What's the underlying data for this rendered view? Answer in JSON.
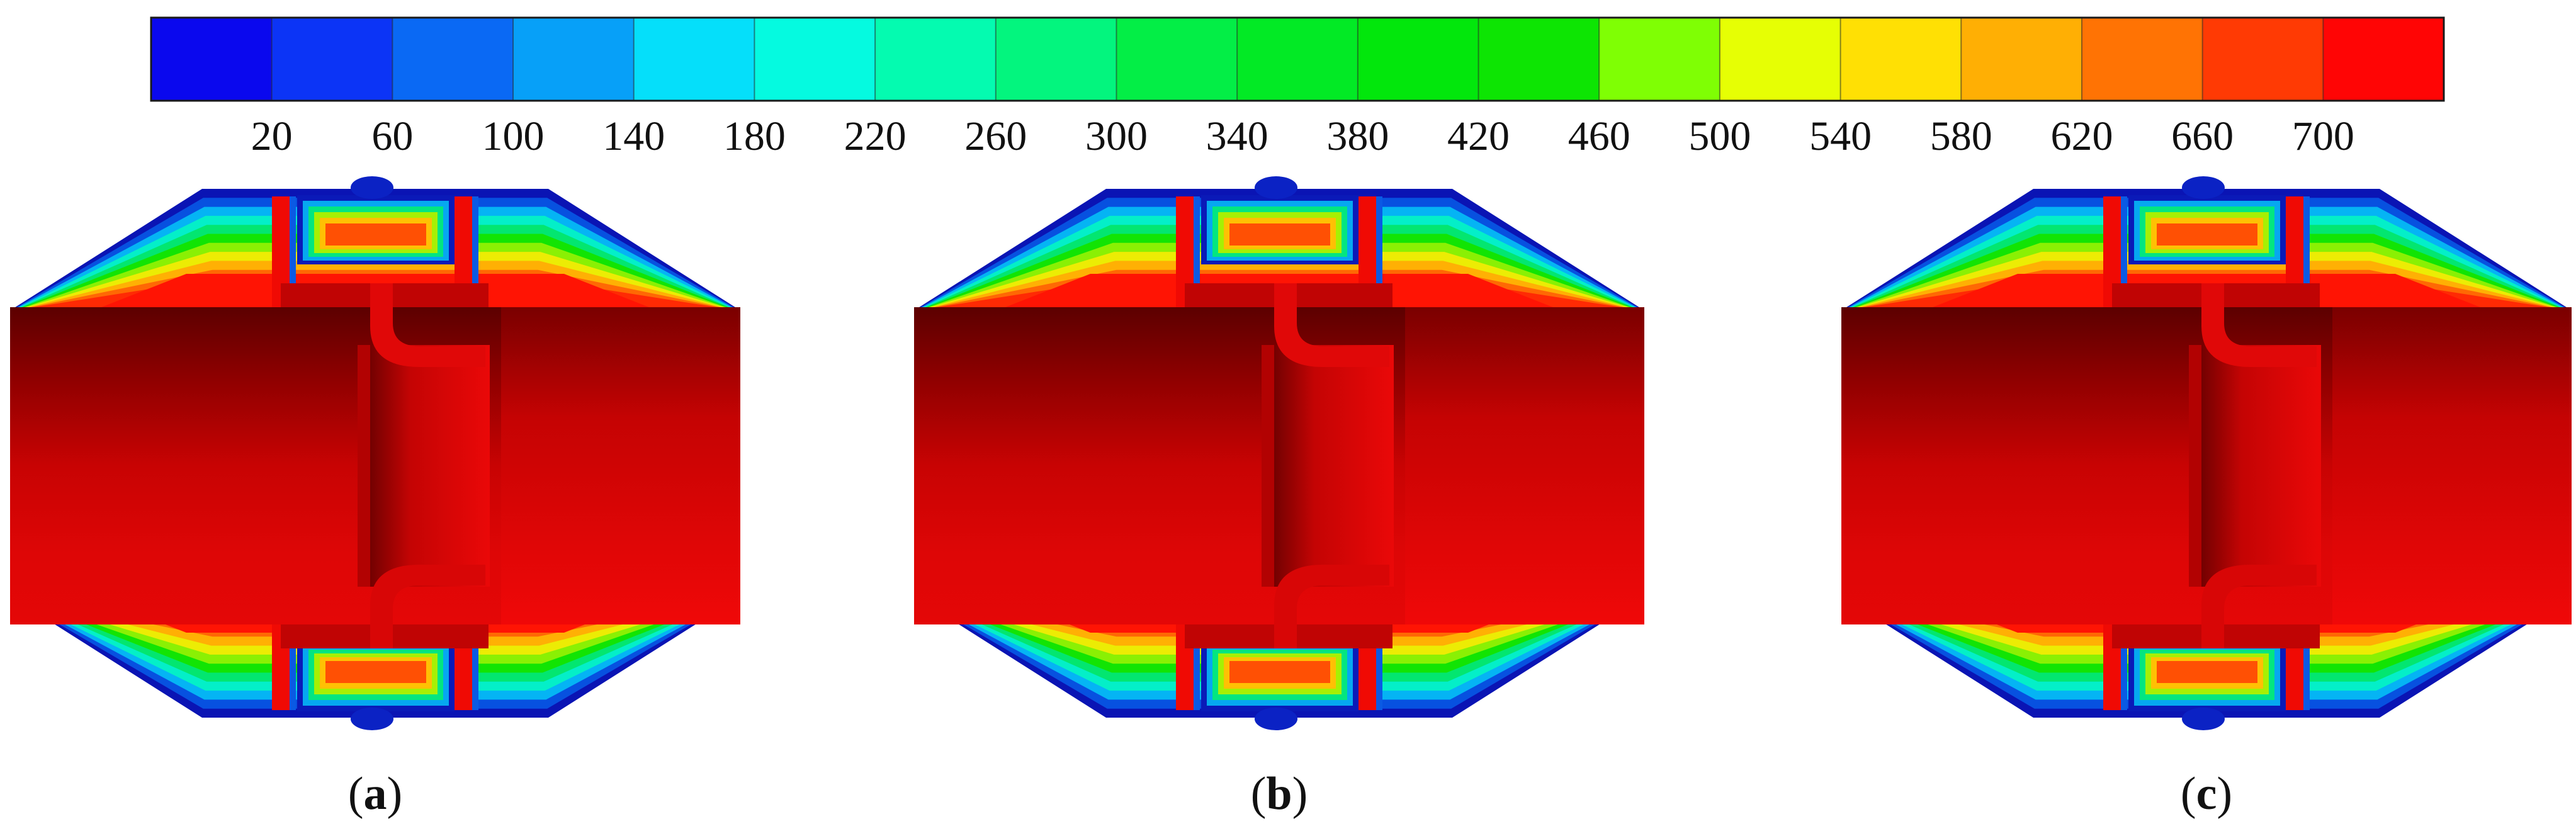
{
  "legend": {
    "colors": [
      "#0a08ee",
      "#0c34f6",
      "#0a69f4",
      "#07a0f8",
      "#05dffa",
      "#05fae0",
      "#04fbb0",
      "#03f57e",
      "#03ee46",
      "#02ea25",
      "#02e70c",
      "#0de503",
      "#7fff04",
      "#e6ff04",
      "#ffe004",
      "#ffaf04",
      "#ff7304",
      "#ff3a04",
      "#ff0505"
    ],
    "tick_labels": [
      "20",
      "60",
      "100",
      "140",
      "180",
      "220",
      "260",
      "300",
      "340",
      "380",
      "420",
      "460",
      "500",
      "540",
      "580",
      "620",
      "660",
      "700"
    ]
  },
  "panels": [
    {
      "id": "a",
      "open": "(",
      "letter": "a",
      "close": ")"
    },
    {
      "id": "b",
      "open": "(",
      "letter": "b",
      "close": ")"
    },
    {
      "id": "c",
      "open": "(",
      "letter": "c",
      "close": ")"
    }
  ]
}
